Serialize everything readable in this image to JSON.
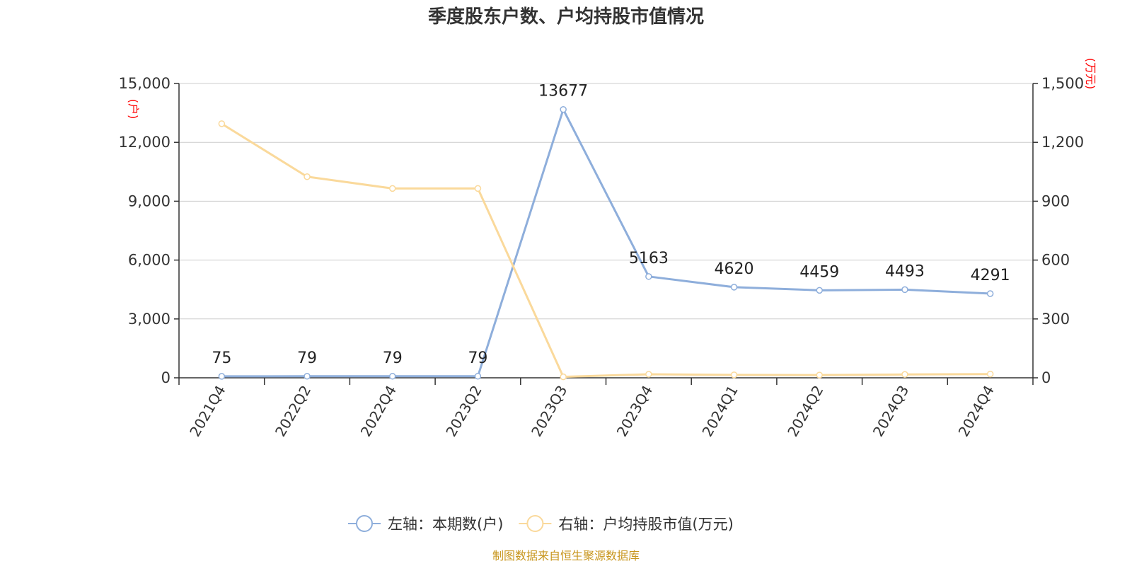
{
  "chart_data": {
    "type": "line",
    "title": "季度股东户数、户均持股市值情况",
    "categories": [
      "2021Q4",
      "2022Q2",
      "2022Q4",
      "2023Q2",
      "2023Q3",
      "2023Q4",
      "2024Q1",
      "2024Q2",
      "2024Q3",
      "2024Q4"
    ],
    "left_axis": {
      "unit": "(户)",
      "ylim": [
        0,
        15000
      ],
      "ticks": [
        0,
        3000,
        6000,
        9000,
        12000,
        15000
      ],
      "tick_labels": [
        "0",
        "3,000",
        "6,000",
        "9,000",
        "12,000",
        "15,000"
      ]
    },
    "right_axis": {
      "unit": "(万元)",
      "ylim": [
        0,
        1500
      ],
      "ticks": [
        0,
        300,
        600,
        900,
        1200,
        1500
      ],
      "tick_labels": [
        "0",
        "300",
        "600",
        "900",
        "1,200",
        "1,500"
      ]
    },
    "series": [
      {
        "name": "左轴：本期数(户)",
        "axis": "left",
        "color": "#8eaedb",
        "values": [
          75,
          79,
          79,
          79,
          13677,
          5163,
          4620,
          4459,
          4493,
          4291
        ],
        "labels": [
          "75",
          "79",
          "79",
          "79",
          "13677",
          "5163",
          "4620",
          "4459",
          "4493",
          "4291"
        ]
      },
      {
        "name": "右轴：户均持股市值(万元)",
        "axis": "right",
        "color": "#fad99b",
        "values": [
          1295,
          1025,
          965,
          965,
          5,
          18,
          15,
          14,
          17,
          19
        ]
      }
    ],
    "grid": true,
    "legend_position": "bottom-center",
    "source": "制图数据来自恒生聚源数据库"
  }
}
